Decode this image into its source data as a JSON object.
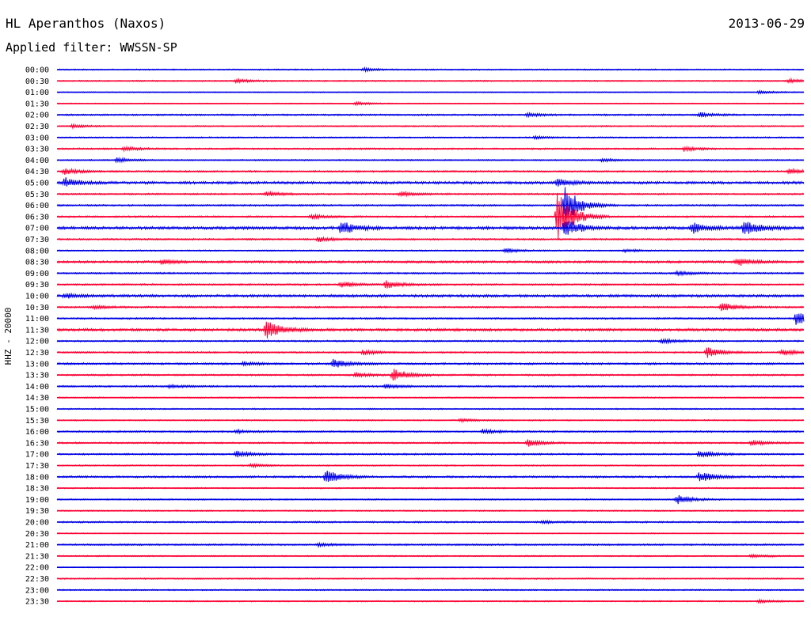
{
  "header": {
    "station": "HL Aperanthos (Naxos)",
    "date": "2013-06-29",
    "filter": "Applied filter: WWSSN-SP"
  },
  "chart_data": {
    "type": "line",
    "title": "HL Aperanthos (Naxos)",
    "ylabel": "HHZ - 20000",
    "row_colors": [
      "#0000e6",
      "#ff0033"
    ],
    "rows": [
      {
        "time": "00:00",
        "noise": 0.8,
        "events": [
          {
            "t": 0.41,
            "amp": 2
          }
        ]
      },
      {
        "time": "00:30",
        "noise": 0.8,
        "events": [
          {
            "t": 0.24,
            "amp": 2.5
          },
          {
            "t": 0.98,
            "amp": 2.5
          }
        ]
      },
      {
        "time": "01:00",
        "noise": 0.6,
        "events": [
          {
            "t": 0.94,
            "amp": 2
          }
        ]
      },
      {
        "time": "01:30",
        "noise": 0.6,
        "events": [
          {
            "t": 0.4,
            "amp": 2
          }
        ]
      },
      {
        "time": "02:00",
        "noise": 1.0,
        "events": [
          {
            "t": 0.63,
            "amp": 2.5
          },
          {
            "t": 0.86,
            "amp": 3
          }
        ]
      },
      {
        "time": "02:30",
        "noise": 0.8,
        "events": [
          {
            "t": 0.02,
            "amp": 2
          }
        ]
      },
      {
        "time": "03:00",
        "noise": 0.8,
        "events": [
          {
            "t": 0.64,
            "amp": 2
          }
        ]
      },
      {
        "time": "03:30",
        "noise": 1.0,
        "events": [
          {
            "t": 0.09,
            "amp": 2.5
          },
          {
            "t": 0.84,
            "amp": 3
          }
        ]
      },
      {
        "time": "04:00",
        "noise": 0.8,
        "events": [
          {
            "t": 0.08,
            "amp": 3
          },
          {
            "t": 0.73,
            "amp": 2
          }
        ]
      },
      {
        "time": "04:30",
        "noise": 1.0,
        "events": [
          {
            "t": 0.01,
            "amp": 4
          },
          {
            "t": 0.98,
            "amp": 3
          }
        ]
      },
      {
        "time": "05:00",
        "noise": 1.6,
        "events": [
          {
            "t": 0.01,
            "amp": 6
          },
          {
            "t": 0.67,
            "amp": 5
          }
        ]
      },
      {
        "time": "05:30",
        "noise": 1.0,
        "events": [
          {
            "t": 0.28,
            "amp": 3
          },
          {
            "t": 0.46,
            "amp": 3
          }
        ]
      },
      {
        "time": "06:00",
        "noise": 1.0,
        "events": [
          {
            "t": 0.68,
            "amp": 25
          }
        ]
      },
      {
        "time": "06:30",
        "noise": 1.0,
        "events": [
          {
            "t": 0.67,
            "amp": 35
          },
          {
            "t": 0.34,
            "amp": 3
          }
        ]
      },
      {
        "time": "07:00",
        "noise": 1.8,
        "events": [
          {
            "t": 0.38,
            "amp": 9
          },
          {
            "t": 0.68,
            "amp": 12
          },
          {
            "t": 0.85,
            "amp": 7
          },
          {
            "t": 0.92,
            "amp": 10
          }
        ]
      },
      {
        "time": "07:30",
        "noise": 1.0,
        "events": [
          {
            "t": 0.35,
            "amp": 3
          }
        ]
      },
      {
        "time": "08:00",
        "noise": 0.8,
        "events": [
          {
            "t": 0.6,
            "amp": 3
          },
          {
            "t": 0.76,
            "amp": 2
          }
        ]
      },
      {
        "time": "08:30",
        "noise": 1.4,
        "events": [
          {
            "t": 0.14,
            "amp": 3
          },
          {
            "t": 0.91,
            "amp": 5
          }
        ]
      },
      {
        "time": "09:00",
        "noise": 1.0,
        "events": [
          {
            "t": 0.83,
            "amp": 3
          }
        ]
      },
      {
        "time": "09:30",
        "noise": 1.0,
        "events": [
          {
            "t": 0.38,
            "amp": 4
          },
          {
            "t": 0.44,
            "amp": 5
          }
        ]
      },
      {
        "time": "10:00",
        "noise": 1.6,
        "events": [
          {
            "t": 0.01,
            "amp": 3
          }
        ]
      },
      {
        "time": "10:30",
        "noise": 1.0,
        "events": [
          {
            "t": 0.05,
            "amp": 2
          },
          {
            "t": 0.89,
            "amp": 6
          }
        ]
      },
      {
        "time": "11:00",
        "noise": 1.0,
        "events": [
          {
            "t": 0.99,
            "amp": 9
          }
        ]
      },
      {
        "time": "11:30",
        "noise": 1.6,
        "events": [
          {
            "t": 0.28,
            "amp": 12
          }
        ]
      },
      {
        "time": "12:00",
        "noise": 1.0,
        "events": [
          {
            "t": 0.81,
            "amp": 3
          }
        ]
      },
      {
        "time": "12:30",
        "noise": 1.0,
        "events": [
          {
            "t": 0.41,
            "amp": 3
          },
          {
            "t": 0.87,
            "amp": 7
          },
          {
            "t": 0.97,
            "amp": 4
          }
        ]
      },
      {
        "time": "13:00",
        "noise": 1.2,
        "events": [
          {
            "t": 0.37,
            "amp": 6
          },
          {
            "t": 0.25,
            "amp": 2
          }
        ]
      },
      {
        "time": "13:30",
        "noise": 1.0,
        "events": [
          {
            "t": 0.4,
            "amp": 3
          },
          {
            "t": 0.45,
            "amp": 8
          }
        ]
      },
      {
        "time": "14:00",
        "noise": 1.0,
        "events": [
          {
            "t": 0.44,
            "amp": 3
          },
          {
            "t": 0.15,
            "amp": 2
          }
        ]
      },
      {
        "time": "14:30",
        "noise": 0.8,
        "events": []
      },
      {
        "time": "15:00",
        "noise": 0.8,
        "events": []
      },
      {
        "time": "15:30",
        "noise": 0.8,
        "events": [
          {
            "t": 0.54,
            "amp": 2
          }
        ]
      },
      {
        "time": "16:00",
        "noise": 1.0,
        "events": [
          {
            "t": 0.24,
            "amp": 2
          },
          {
            "t": 0.57,
            "amp": 3
          }
        ]
      },
      {
        "time": "16:30",
        "noise": 1.0,
        "events": [
          {
            "t": 0.63,
            "amp": 4
          },
          {
            "t": 0.93,
            "amp": 3
          }
        ]
      },
      {
        "time": "17:00",
        "noise": 1.0,
        "events": [
          {
            "t": 0.24,
            "amp": 4
          },
          {
            "t": 0.86,
            "amp": 5
          }
        ]
      },
      {
        "time": "17:30",
        "noise": 0.8,
        "events": [
          {
            "t": 0.26,
            "amp": 2
          }
        ]
      },
      {
        "time": "18:00",
        "noise": 1.2,
        "events": [
          {
            "t": 0.36,
            "amp": 9
          },
          {
            "t": 0.86,
            "amp": 7
          }
        ]
      },
      {
        "time": "18:30",
        "noise": 0.8,
        "events": []
      },
      {
        "time": "19:00",
        "noise": 0.8,
        "events": [
          {
            "t": 0.83,
            "amp": 6
          }
        ]
      },
      {
        "time": "19:30",
        "noise": 0.8,
        "events": []
      },
      {
        "time": "20:00",
        "noise": 1.0,
        "events": [
          {
            "t": 0.65,
            "amp": 2
          }
        ]
      },
      {
        "time": "20:30",
        "noise": 0.6,
        "events": []
      },
      {
        "time": "21:00",
        "noise": 1.0,
        "events": [
          {
            "t": 0.35,
            "amp": 2
          }
        ]
      },
      {
        "time": "21:30",
        "noise": 0.8,
        "events": [
          {
            "t": 0.93,
            "amp": 2
          }
        ]
      },
      {
        "time": "22:00",
        "noise": 0.6,
        "events": []
      },
      {
        "time": "22:30",
        "noise": 0.8,
        "events": []
      },
      {
        "time": "23:00",
        "noise": 0.8,
        "events": []
      },
      {
        "time": "23:30",
        "noise": 0.8,
        "events": [
          {
            "t": 0.94,
            "amp": 2
          }
        ]
      }
    ]
  }
}
